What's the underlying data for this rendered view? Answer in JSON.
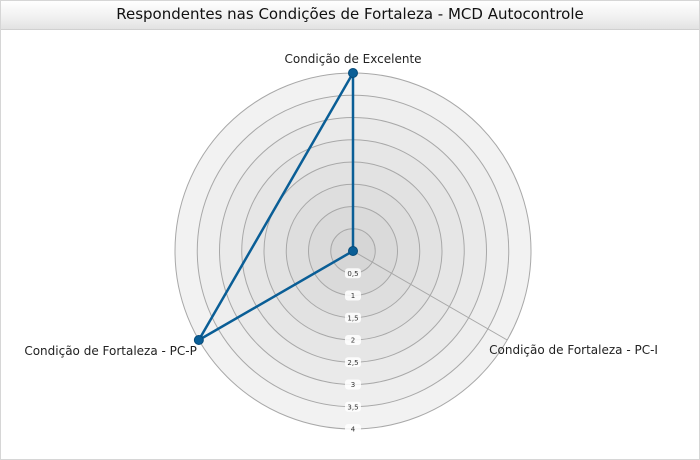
{
  "chart_data": {
    "type": "radar",
    "title": "Respondentes nas Condições de Fortaleza - MCD Autocontrole",
    "axes": [
      "Condição de Excelente",
      "Condição de Fortaleza - PC-I",
      "Condição de Fortaleza - PC-P"
    ],
    "rlim": [
      0,
      4
    ],
    "ticks": [
      "0,5",
      "1",
      "1,5",
      "2",
      "2,5",
      "3",
      "3,5",
      "4"
    ],
    "series": [
      {
        "values": [
          4,
          0,
          4
        ]
      }
    ],
    "grid": true,
    "legend": "none"
  },
  "colors": {
    "series": "#0a5e96",
    "ring_outer": "#f2f2f2",
    "ring_inner": "#d6d6d6",
    "grid_line": "#a8a8a8"
  }
}
